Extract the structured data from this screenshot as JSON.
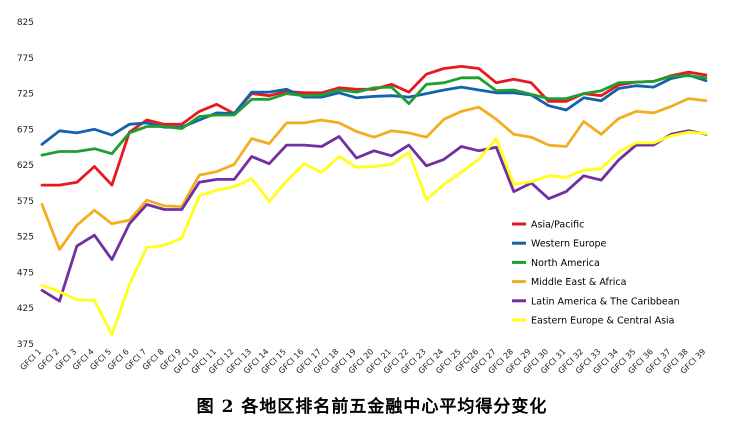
{
  "chart_data": {
    "type": "line",
    "title": "",
    "xlabel": "",
    "ylabel": "",
    "ylim": [
      375,
      825
    ],
    "yticks": [
      375,
      425,
      475,
      525,
      575,
      625,
      675,
      725,
      775,
      825
    ],
    "grid": false,
    "legend_position": "bottom-right",
    "categories": [
      "GFCI 1",
      "GFCI 2",
      "GFCI 3",
      "GFCI 4",
      "GFCI 5",
      "GFCI 6",
      "GFCI 7",
      "GFCI 8",
      "GFCI 9",
      "GFCI 10",
      "GFCI 11",
      "GFCI 12",
      "GFCI 13",
      "GFCI 14",
      "GFCI 15",
      "GFCI 16",
      "GFCI 17",
      "GFCI 18",
      "GFCI 19",
      "GFCI 20",
      "GFCI 21",
      "GFCI 22",
      "GFCI 23",
      "GFCI 24",
      "GFCI 25",
      "GFCI26",
      "GFCI 27",
      "GFCI 28",
      "GFCI 29",
      "GFCI 30",
      "GFCI 31",
      "GFCI 32",
      "GFCI 33",
      "GFCI 34",
      "GFCI 35",
      "GFCI 36",
      "GFCI 37",
      "GFCI 38",
      "GFCI 39"
    ],
    "series": [
      {
        "name": "Asia/Pacific",
        "color": "#e8191e",
        "values": [
          597,
          597,
          601,
          623,
          597,
          671,
          688,
          682,
          682,
          700,
          710,
          697,
          725,
          722,
          728,
          726,
          726,
          733,
          731,
          731,
          738,
          727,
          752,
          760,
          763,
          760,
          740,
          745,
          740,
          714,
          714,
          725,
          722,
          737,
          741,
          742,
          750,
          755,
          751
        ]
      },
      {
        "name": "Western Europe",
        "color": "#1462ab",
        "values": [
          654,
          673,
          670,
          675,
          667,
          682,
          684,
          678,
          678,
          688,
          698,
          697,
          727,
          727,
          731,
          720,
          720,
          726,
          719,
          721,
          722,
          720,
          725,
          730,
          734,
          730,
          726,
          726,
          723,
          708,
          702,
          719,
          715,
          732,
          736,
          734,
          746,
          751,
          743
        ]
      },
      {
        "name": "North America",
        "color": "#1f9e33",
        "values": [
          639,
          644,
          644,
          648,
          641,
          670,
          679,
          679,
          676,
          693,
          695,
          695,
          717,
          717,
          725,
          722,
          723,
          730,
          727,
          733,
          734,
          711,
          738,
          740,
          747,
          747,
          729,
          730,
          724,
          718,
          718,
          725,
          729,
          740,
          741,
          742,
          749,
          750,
          747
        ]
      },
      {
        "name": "Middle East & Africa",
        "color": "#f3ae1f",
        "values": [
          570,
          507,
          541,
          562,
          543,
          548,
          576,
          568,
          567,
          611,
          616,
          626,
          662,
          655,
          684,
          684,
          688,
          684,
          672,
          664,
          673,
          670,
          664,
          689,
          700,
          706,
          689,
          668,
          664,
          653,
          651,
          686,
          668,
          690,
          700,
          698,
          707,
          718,
          715
        ]
      },
      {
        "name": "Latin America & The Caribbean",
        "color": "#7030a0",
        "values": [
          450,
          435,
          512,
          527,
          493,
          543,
          570,
          563,
          563,
          601,
          605,
          605,
          637,
          627,
          653,
          653,
          651,
          665,
          635,
          645,
          638,
          653,
          624,
          633,
          651,
          645,
          650,
          588,
          600,
          578,
          588,
          610,
          604,
          632,
          653,
          653,
          668,
          673,
          668
        ]
      },
      {
        "name": "Eastern Europe & Central Asia",
        "color": "#ffff1a",
        "values": [
          457,
          448,
          437,
          436,
          388,
          458,
          510,
          513,
          523,
          582,
          590,
          595,
          606,
          574,
          603,
          627,
          615,
          637,
          622,
          623,
          626,
          643,
          577,
          598,
          615,
          633,
          662,
          598,
          602,
          610,
          608,
          618,
          620,
          643,
          656,
          656,
          666,
          671,
          669
        ]
      }
    ]
  },
  "caption": "图 2   各地区排名前五金融中心平均得分变化"
}
